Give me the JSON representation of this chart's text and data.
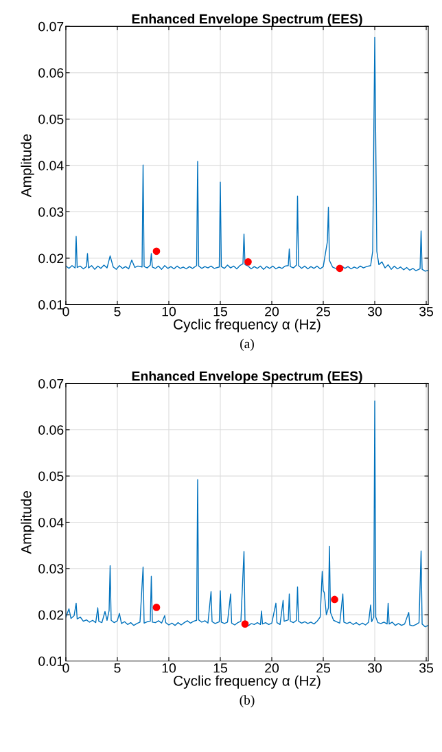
{
  "chart_data": [
    {
      "type": "line",
      "title": "Enhanced Envelope Spectrum (EES)",
      "xlabel": "Cyclic frequency α (Hz)",
      "ylabel": "Amplitude",
      "annotations": [
        "(a)"
      ],
      "xlim": [
        0,
        35.2
      ],
      "ylim": [
        0.01,
        0.07
      ],
      "xticks": [
        0,
        5,
        10,
        15,
        20,
        25,
        30,
        35
      ],
      "yticks": [
        {
          "value": 0.01,
          "label": "0.01"
        },
        {
          "value": 0.02,
          "label": "0.02"
        },
        {
          "value": 0.03,
          "label": "0.03"
        },
        {
          "value": 0.04,
          "label": "0.04"
        },
        {
          "value": 0.05,
          "label": "0.05"
        },
        {
          "value": 0.06,
          "label": "0.06"
        },
        {
          "value": 0.07,
          "label": "0.07"
        }
      ],
      "grid": true,
      "marker": "none",
      "line_style": "solid",
      "series": [
        {
          "color": "#0072bd",
          "x": [
            0,
            0.3,
            0.6,
            0.9,
            1.0,
            1.1,
            1.4,
            1.7,
            2.0,
            2.1,
            2.2,
            2.5,
            2.8,
            3.1,
            3.4,
            3.7,
            4.0,
            4.3,
            4.6,
            4.9,
            5.2,
            5.5,
            5.8,
            6.1,
            6.4,
            6.7,
            7.0,
            7.4,
            7.5,
            7.6,
            7.9,
            8.2,
            8.3,
            8.4,
            8.7,
            9.0,
            9.3,
            9.6,
            9.9,
            10.2,
            10.5,
            10.8,
            11.1,
            11.4,
            11.7,
            12.0,
            12.3,
            12.7,
            12.8,
            12.9,
            13.2,
            13.5,
            13.8,
            14.1,
            14.4,
            14.9,
            15.0,
            15.1,
            15.4,
            15.7,
            16.0,
            16.3,
            16.6,
            16.9,
            17.2,
            17.3,
            17.4,
            17.7,
            18.0,
            18.3,
            18.6,
            18.9,
            19.2,
            19.5,
            19.8,
            20.1,
            20.4,
            20.7,
            21.0,
            21.3,
            21.6,
            21.7,
            21.8,
            22.1,
            22.4,
            22.5,
            22.6,
            22.9,
            23.2,
            23.5,
            23.8,
            24.1,
            24.4,
            24.7,
            25.0,
            25.4,
            25.5,
            25.6,
            25.9,
            26.2,
            26.5,
            26.8,
            27.1,
            27.4,
            27.7,
            28.0,
            28.3,
            28.6,
            28.9,
            29.2,
            29.6,
            29.8,
            30.0,
            30.2,
            30.4,
            30.7,
            31.0,
            31.3,
            31.6,
            31.9,
            32.2,
            32.5,
            32.8,
            33.1,
            33.4,
            33.7,
            34.0,
            34.4,
            34.5,
            34.6,
            34.9,
            35.2
          ],
          "values": [
            0.0183,
            0.0178,
            0.0184,
            0.0179,
            0.0247,
            0.018,
            0.0183,
            0.0177,
            0.0182,
            0.021,
            0.0179,
            0.0184,
            0.0176,
            0.0183,
            0.0178,
            0.0185,
            0.0179,
            0.0205,
            0.0181,
            0.0176,
            0.0184,
            0.0178,
            0.0182,
            0.0177,
            0.0196,
            0.018,
            0.0183,
            0.0181,
            0.0401,
            0.0182,
            0.0179,
            0.0185,
            0.021,
            0.0181,
            0.0178,
            0.0183,
            0.0176,
            0.0184,
            0.0178,
            0.0182,
            0.0177,
            0.0183,
            0.0178,
            0.0181,
            0.0177,
            0.0182,
            0.0178,
            0.0184,
            0.0409,
            0.0183,
            0.0178,
            0.0182,
            0.0179,
            0.0183,
            0.0178,
            0.0181,
            0.0364,
            0.0182,
            0.0178,
            0.0185,
            0.0179,
            0.0183,
            0.0177,
            0.0184,
            0.0188,
            0.0252,
            0.0186,
            0.0183,
            0.0177,
            0.0182,
            0.0178,
            0.0183,
            0.0176,
            0.0182,
            0.0178,
            0.0183,
            0.0177,
            0.0181,
            0.0178,
            0.0183,
            0.0184,
            0.022,
            0.0182,
            0.0179,
            0.0185,
            0.0334,
            0.0184,
            0.0178,
            0.0183,
            0.0177,
            0.0182,
            0.0178,
            0.0183,
            0.0177,
            0.0182,
            0.0236,
            0.031,
            0.0195,
            0.0181,
            0.0178,
            0.0176,
            0.0183,
            0.0178,
            0.0182,
            0.0177,
            0.0181,
            0.0178,
            0.0183,
            0.0179,
            0.0182,
            0.0184,
            0.0215,
            0.0676,
            0.0215,
            0.0186,
            0.0192,
            0.0179,
            0.0186,
            0.0176,
            0.0183,
            0.0177,
            0.0181,
            0.0175,
            0.018,
            0.0174,
            0.0178,
            0.0173,
            0.0177,
            0.0259,
            0.0176,
            0.0172,
            0.0174
          ]
        },
        {
          "type": "scatter",
          "color": "#ff0000",
          "marker": "circle",
          "x": [
            8.8,
            17.7,
            26.6
          ],
          "values": [
            0.0215,
            0.0192,
            0.0178
          ]
        }
      ]
    },
    {
      "type": "line",
      "title": "Enhanced Envelope Spectrum (EES)",
      "xlabel": "Cyclic frequency α (Hz)",
      "ylabel": "Amplitude",
      "annotations": [
        "(b)"
      ],
      "xlim": [
        0,
        35.2
      ],
      "ylim": [
        0.01,
        0.07
      ],
      "xticks": [
        0,
        5,
        10,
        15,
        20,
        25,
        30,
        35
      ],
      "yticks": [
        {
          "value": 0.01,
          "label": "0.01"
        },
        {
          "value": 0.02,
          "label": "0.02"
        },
        {
          "value": 0.03,
          "label": "0.03"
        },
        {
          "value": 0.04,
          "label": "0.04"
        },
        {
          "value": 0.05,
          "label": "0.05"
        },
        {
          "value": 0.06,
          "label": "0.06"
        },
        {
          "value": 0.07,
          "label": "0.07"
        }
      ],
      "grid": true,
      "marker": "none",
      "line_style": "solid",
      "series": [
        {
          "color": "#0072bd",
          "x": [
            0,
            0.3,
            0.5,
            0.8,
            1.0,
            1.1,
            1.4,
            1.7,
            2.0,
            2.3,
            2.6,
            2.9,
            3.1,
            3.2,
            3.5,
            3.8,
            4.0,
            4.2,
            4.3,
            4.4,
            4.7,
            5.0,
            5.2,
            5.4,
            5.7,
            6.0,
            6.3,
            6.6,
            6.9,
            7.2,
            7.5,
            7.6,
            7.9,
            8.2,
            8.3,
            8.4,
            8.7,
            9.0,
            9.3,
            9.6,
            9.7,
            10.0,
            10.3,
            10.6,
            10.9,
            11.2,
            11.5,
            11.8,
            12.1,
            12.4,
            12.7,
            12.8,
            12.9,
            13.2,
            13.5,
            13.8,
            14.1,
            14.2,
            14.5,
            14.9,
            15.0,
            15.1,
            15.4,
            15.7,
            16.0,
            16.1,
            16.4,
            16.7,
            17.0,
            17.3,
            17.4,
            17.7,
            18.0,
            18.3,
            18.6,
            18.9,
            19.0,
            19.1,
            19.4,
            19.7,
            20.0,
            20.4,
            20.5,
            20.8,
            21.1,
            21.2,
            21.6,
            21.7,
            21.8,
            22.1,
            22.4,
            22.5,
            22.6,
            22.9,
            23.2,
            23.5,
            23.8,
            24.1,
            24.4,
            24.7,
            24.9,
            25.0,
            25.1,
            25.3,
            25.5,
            25.6,
            25.7,
            26.0,
            26.3,
            26.6,
            26.9,
            27.0,
            27.3,
            27.6,
            27.9,
            28.2,
            28.5,
            28.8,
            29.1,
            29.4,
            29.6,
            29.7,
            29.9,
            30.0,
            30.1,
            30.3,
            30.6,
            30.9,
            31.2,
            31.3,
            31.4,
            31.7,
            32.0,
            32.3,
            32.6,
            32.9,
            33.3,
            33.4,
            33.7,
            34.0,
            34.3,
            34.5,
            34.6,
            34.9,
            35.2
          ],
          "values": [
            0.0195,
            0.0213,
            0.0192,
            0.0198,
            0.0225,
            0.0191,
            0.0195,
            0.0186,
            0.0189,
            0.0184,
            0.0188,
            0.0183,
            0.0215,
            0.0186,
            0.0183,
            0.0207,
            0.0188,
            0.0209,
            0.0306,
            0.0188,
            0.0183,
            0.0187,
            0.0203,
            0.0181,
            0.0185,
            0.0179,
            0.0183,
            0.0177,
            0.0181,
            0.0184,
            0.0303,
            0.0182,
            0.0185,
            0.0186,
            0.0283,
            0.0184,
            0.0183,
            0.0187,
            0.0182,
            0.0198,
            0.0183,
            0.0178,
            0.0182,
            0.0177,
            0.0183,
            0.0178,
            0.0183,
            0.0187,
            0.0182,
            0.0186,
            0.0188,
            0.0492,
            0.0189,
            0.0184,
            0.0187,
            0.0182,
            0.025,
            0.0185,
            0.0181,
            0.0185,
            0.0252,
            0.0184,
            0.0181,
            0.0184,
            0.0245,
            0.0182,
            0.0178,
            0.0183,
            0.0186,
            0.0337,
            0.0182,
            0.0176,
            0.0181,
            0.0179,
            0.0183,
            0.0179,
            0.0208,
            0.018,
            0.0183,
            0.0179,
            0.0182,
            0.0225,
            0.0183,
            0.0179,
            0.0231,
            0.0186,
            0.0189,
            0.0245,
            0.0186,
            0.0183,
            0.0188,
            0.026,
            0.0186,
            0.0182,
            0.0185,
            0.0181,
            0.0184,
            0.018,
            0.0186,
            0.0195,
            0.0294,
            0.0252,
            0.0248,
            0.02,
            0.0215,
            0.0348,
            0.0205,
            0.0188,
            0.0185,
            0.0182,
            0.0245,
            0.0184,
            0.0181,
            0.0184,
            0.0179,
            0.0183,
            0.0178,
            0.0182,
            0.0178,
            0.0184,
            0.0221,
            0.0185,
            0.0195,
            0.0662,
            0.0195,
            0.0183,
            0.0181,
            0.0184,
            0.018,
            0.0225,
            0.018,
            0.0184,
            0.0177,
            0.0181,
            0.0177,
            0.018,
            0.0205,
            0.0178,
            0.0176,
            0.0179,
            0.0183,
            0.0338,
            0.018,
            0.0174,
            0.0177
          ]
        },
        {
          "type": "scatter",
          "color": "#ff0000",
          "marker": "circle",
          "x": [
            8.8,
            17.4,
            26.1
          ],
          "values": [
            0.0216,
            0.018,
            0.0233
          ]
        }
      ]
    }
  ]
}
